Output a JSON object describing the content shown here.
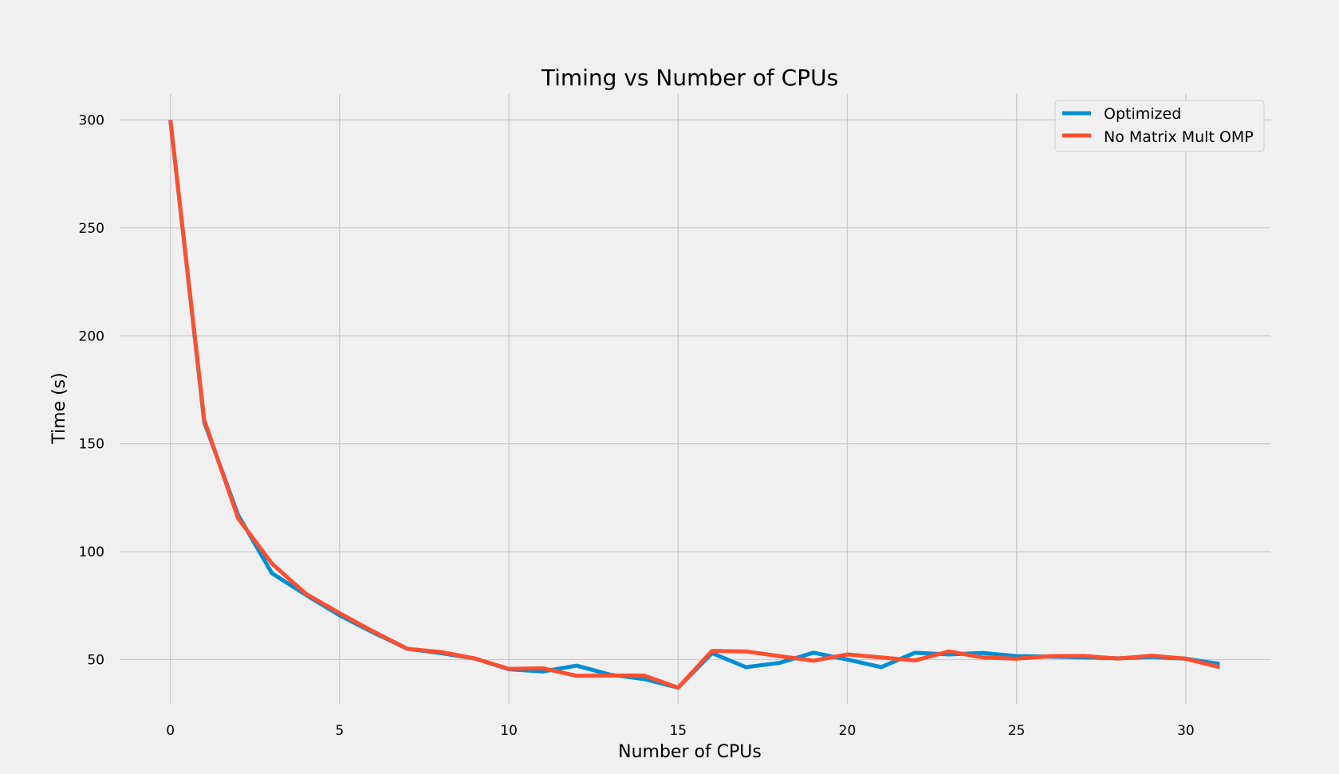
{
  "chart_data": {
    "type": "line",
    "title": "Timing vs Number of CPUs",
    "xlabel": "Number of CPUs",
    "ylabel": "Time (s)",
    "xlim": [
      -1.5,
      32.5
    ],
    "ylim": [
      29.5,
      312
    ],
    "xticks": [
      0,
      5,
      10,
      15,
      20,
      25,
      30
    ],
    "yticks": [
      50,
      100,
      150,
      200,
      250,
      300
    ],
    "grid": true,
    "legend_position": "top-right",
    "x": [
      0,
      1,
      2,
      3,
      4,
      5,
      6,
      7,
      8,
      9,
      10,
      11,
      12,
      13,
      14,
      15,
      16,
      17,
      18,
      19,
      20,
      21,
      22,
      23,
      24,
      25,
      26,
      27,
      28,
      29,
      30,
      31
    ],
    "series": [
      {
        "name": "Optimized",
        "color": "#008fd5",
        "values": [
          300,
          160,
          117,
          90,
          80,
          70.5,
          62.5,
          55,
          53,
          50.5,
          45.5,
          44.5,
          47.2,
          43,
          41,
          37,
          53,
          46.5,
          48.5,
          53.2,
          50,
          46.5,
          53.2,
          52.4,
          53.1,
          51.6,
          51.4,
          51,
          50.6,
          51.2,
          50.4,
          48
        ]
      },
      {
        "name": "No Matrix Mult OMP",
        "color": "#fc4f30",
        "values": [
          300,
          161,
          115.5,
          94.5,
          80.5,
          71.5,
          63,
          55,
          53.5,
          50.5,
          45.7,
          46,
          42.5,
          42.6,
          42.6,
          37,
          54,
          53.8,
          51.6,
          49.5,
          52.4,
          51,
          49.6,
          53.8,
          51,
          50.4,
          51.6,
          51.7,
          50.5,
          51.8,
          50.4,
          46.5
        ]
      }
    ]
  }
}
